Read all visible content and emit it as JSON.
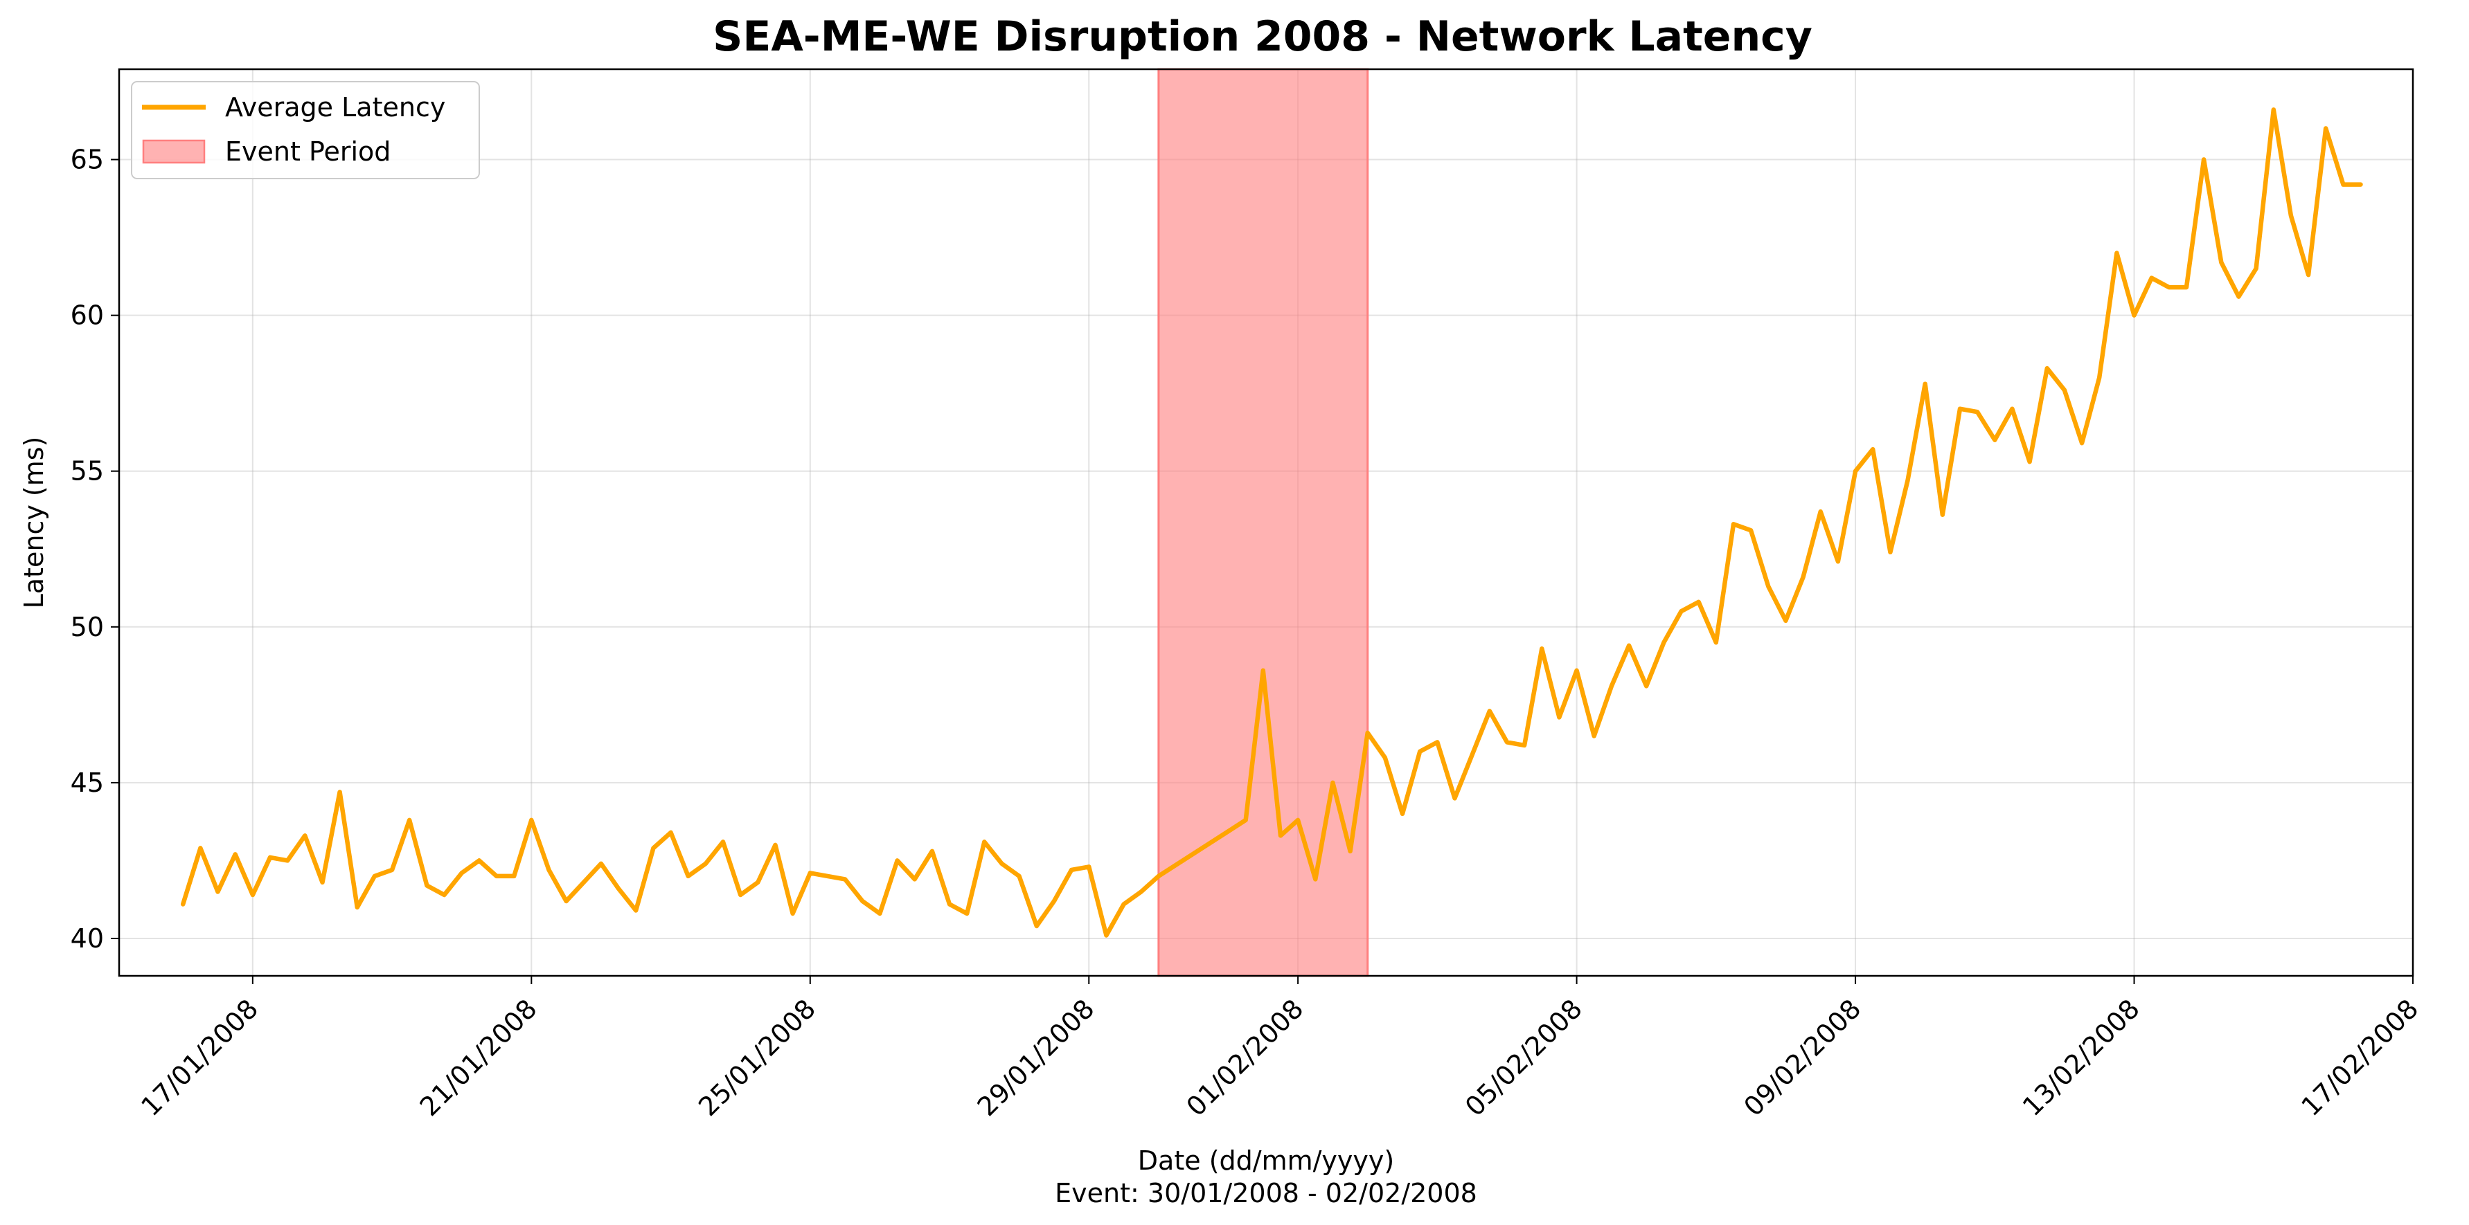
{
  "chart_data": {
    "type": "line",
    "title": "SEA-ME-WE Disruption 2008 - Network Latency",
    "xlabel": "Date (dd/mm/yyyy)",
    "xlabel_subtitle": "Event: 30/01/2008 - 02/02/2008",
    "ylabel": "Latency (ms)",
    "ylim": [
      38.8,
      67.9
    ],
    "xlim": [
      "2008-01-15T02:00",
      "2008-02-17T00:00"
    ],
    "x_ticks": [
      "2008-01-17",
      "2008-01-21",
      "2008-01-25",
      "2008-01-29",
      "2008-02-01",
      "2008-02-05",
      "2008-02-09",
      "2008-02-13",
      "2008-02-17"
    ],
    "x_tick_labels": [
      "17/01/2008",
      "21/01/2008",
      "25/01/2008",
      "29/01/2008",
      "01/02/2008",
      "05/02/2008",
      "09/02/2008",
      "13/02/2008",
      "17/02/2008"
    ],
    "y_ticks": [
      40,
      45,
      50,
      55,
      60,
      65
    ],
    "y_tick_labels": [
      "40",
      "45",
      "50",
      "55",
      "60",
      "65"
    ],
    "grid": true,
    "legend_position": "top-left",
    "event_period": {
      "name": "Event Period",
      "start": "2008-01-30",
      "end": "2008-02-02",
      "color": "#ff7f7f"
    },
    "series": [
      {
        "name": "Average Latency",
        "color": "#ffa500",
        "x": [
          "2008-01-16T00:00",
          "2008-01-16T06:00",
          "2008-01-16T12:00",
          "2008-01-16T18:00",
          "2008-01-17T00:00",
          "2008-01-17T06:00",
          "2008-01-17T12:00",
          "2008-01-17T18:00",
          "2008-01-18T00:00",
          "2008-01-18T06:00",
          "2008-01-18T12:00",
          "2008-01-18T18:00",
          "2008-01-19T00:00",
          "2008-01-19T06:00",
          "2008-01-19T12:00",
          "2008-01-19T18:00",
          "2008-01-20T00:00",
          "2008-01-20T06:00",
          "2008-01-20T12:00",
          "2008-01-20T18:00",
          "2008-01-21T00:00",
          "2008-01-21T06:00",
          "2008-01-21T12:00",
          "2008-01-21T18:00",
          "2008-01-22T00:00",
          "2008-01-22T06:00",
          "2008-01-22T12:00",
          "2008-01-22T18:00",
          "2008-01-23T00:00",
          "2008-01-23T06:00",
          "2008-01-23T12:00",
          "2008-01-23T18:00",
          "2008-01-24T00:00",
          "2008-01-24T06:00",
          "2008-01-24T12:00",
          "2008-01-24T18:00",
          "2008-01-25T00:00",
          "2008-01-25T06:00",
          "2008-01-25T12:00",
          "2008-01-25T18:00",
          "2008-01-26T00:00",
          "2008-01-26T06:00",
          "2008-01-26T12:00",
          "2008-01-26T18:00",
          "2008-01-27T00:00",
          "2008-01-27T06:00",
          "2008-01-27T12:00",
          "2008-01-27T18:00",
          "2008-01-28T00:00",
          "2008-01-28T06:00",
          "2008-01-28T12:00",
          "2008-01-28T18:00",
          "2008-01-29T00:00",
          "2008-01-29T06:00",
          "2008-01-29T12:00",
          "2008-01-29T18:00",
          "2008-01-30T00:00",
          "2008-01-31T06:00",
          "2008-01-31T12:00",
          "2008-01-31T18:00",
          "2008-02-01T00:00",
          "2008-02-01T06:00",
          "2008-02-01T12:00",
          "2008-02-01T18:00",
          "2008-02-02T00:00",
          "2008-02-02T06:00",
          "2008-02-02T12:00",
          "2008-02-02T18:00",
          "2008-02-03T00:00",
          "2008-02-03T06:00",
          "2008-02-03T12:00",
          "2008-02-03T18:00",
          "2008-02-04T00:00",
          "2008-02-04T06:00",
          "2008-02-04T12:00",
          "2008-02-04T18:00",
          "2008-02-05T00:00",
          "2008-02-05T06:00",
          "2008-02-05T12:00",
          "2008-02-05T18:00",
          "2008-02-06T00:00",
          "2008-02-06T06:00",
          "2008-02-06T12:00",
          "2008-02-06T18:00",
          "2008-02-07T00:00",
          "2008-02-07T06:00",
          "2008-02-07T12:00",
          "2008-02-07T18:00",
          "2008-02-08T00:00",
          "2008-02-08T06:00",
          "2008-02-08T12:00",
          "2008-02-08T18:00",
          "2008-02-09T00:00",
          "2008-02-09T06:00",
          "2008-02-09T12:00",
          "2008-02-09T18:00",
          "2008-02-10T00:00",
          "2008-02-10T06:00",
          "2008-02-10T12:00",
          "2008-02-10T18:00",
          "2008-02-11T00:00",
          "2008-02-11T06:00",
          "2008-02-11T12:00",
          "2008-02-11T18:00",
          "2008-02-12T00:00",
          "2008-02-12T06:00",
          "2008-02-12T12:00",
          "2008-02-12T18:00",
          "2008-02-13T00:00",
          "2008-02-13T06:00",
          "2008-02-13T12:00",
          "2008-02-13T18:00",
          "2008-02-14T00:00",
          "2008-02-14T06:00",
          "2008-02-14T12:00",
          "2008-02-14T18:00",
          "2008-02-15T00:00",
          "2008-02-15T06:00",
          "2008-02-15T12:00",
          "2008-02-15T18:00",
          "2008-02-16T00:00",
          "2008-02-16T06:00"
        ],
        "y": [
          41.1,
          42.9,
          41.5,
          42.7,
          41.4,
          42.6,
          42.5,
          43.3,
          41.8,
          44.7,
          41.0,
          42.0,
          42.2,
          43.8,
          41.7,
          41.4,
          42.1,
          42.5,
          42.0,
          42.0,
          43.8,
          42.2,
          41.2,
          41.8,
          42.4,
          41.6,
          40.9,
          42.9,
          43.4,
          42.0,
          42.4,
          43.1,
          41.4,
          41.8,
          43.0,
          40.8,
          42.1,
          42.0,
          41.9,
          41.2,
          40.8,
          42.5,
          41.9,
          42.8,
          41.1,
          40.8,
          43.1,
          42.4,
          42.0,
          40.4,
          41.2,
          42.2,
          42.3,
          40.1,
          41.1,
          41.5,
          42.0,
          43.8,
          48.6,
          43.3,
          43.8,
          41.9,
          45.0,
          42.8,
          46.6,
          45.8,
          44.0,
          46.0,
          46.3,
          44.5,
          45.9,
          47.3,
          46.3,
          46.2,
          49.3,
          47.1,
          48.6,
          46.5,
          48.1,
          49.4,
          48.1,
          49.5,
          50.5,
          50.8,
          49.5,
          53.3,
          53.1,
          51.3,
          50.2,
          51.6,
          53.7,
          52.1,
          55.0,
          55.7,
          52.4,
          54.7,
          57.8,
          53.6,
          57.0,
          56.9,
          56.0,
          57.0,
          55.3,
          58.3,
          57.6,
          55.9,
          58.0,
          62.0,
          60.0,
          61.2,
          60.9,
          60.9,
          65.0,
          61.7,
          60.6,
          61.5,
          66.6,
          63.2,
          61.3,
          66.0,
          64.2,
          64.2
        ]
      }
    ]
  }
}
